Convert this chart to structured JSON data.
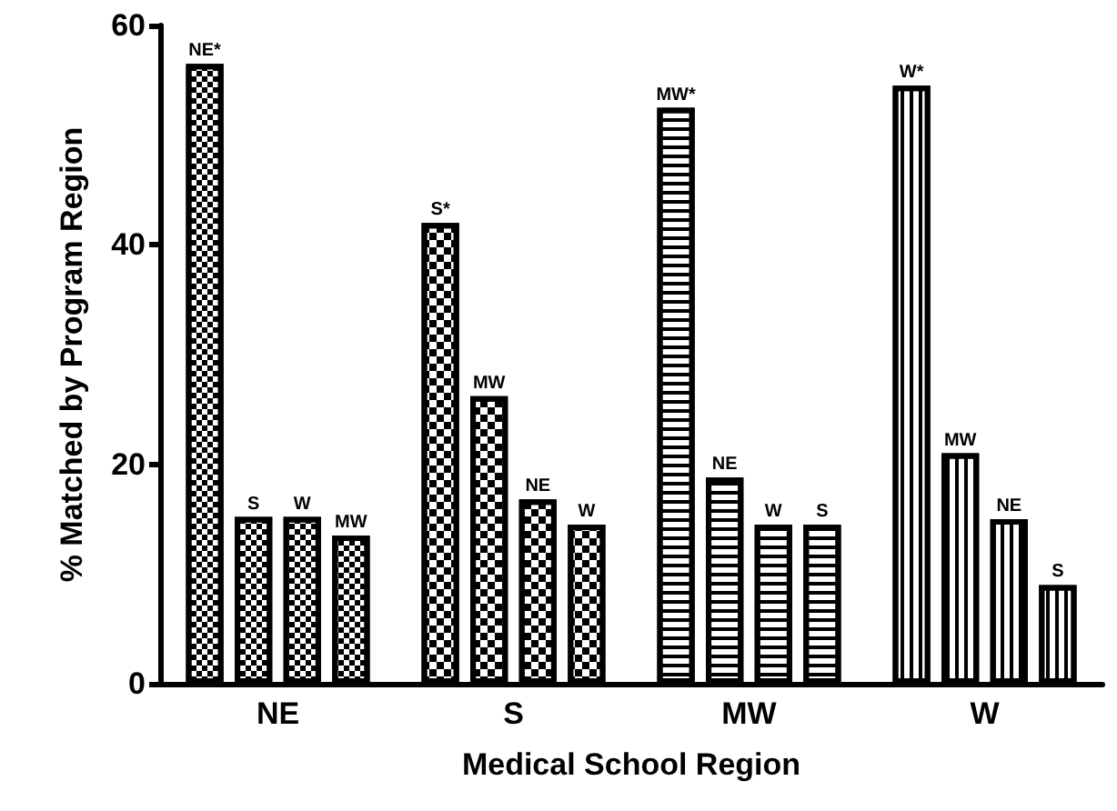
{
  "chart_data": {
    "type": "bar",
    "xlabel": "Medical School Region",
    "ylabel": "% Matched by Program Region",
    "categories": [
      "NE",
      "S",
      "MW",
      "W"
    ],
    "series": [
      {
        "color": "#ffffff",
        "values": [
          56.5,
          42,
          52.5,
          54.5
        ],
        "value_labels": [
          "NE*",
          "S*",
          "MW*",
          "W*"
        ]
      },
      {
        "color": "#ffffff",
        "values": [
          15.2,
          26.2,
          18.8,
          21
        ],
        "value_labels": [
          "S",
          "MW",
          "NE",
          "MW"
        ]
      },
      {
        "color": "#ffffff",
        "values": [
          15.2,
          16.8,
          14.5,
          15
        ],
        "value_labels": [
          "W",
          "NE",
          "W",
          "NE"
        ]
      },
      {
        "color": "#ffffff",
        "values": [
          13.5,
          14.5,
          14.5,
          9
        ],
        "value_labels": [
          "MW",
          "W",
          "S",
          "S"
        ]
      }
    ],
    "ylim": [
      0,
      60
    ],
    "yticks": [
      0,
      20,
      40,
      60
    ],
    "grid": false
  }
}
